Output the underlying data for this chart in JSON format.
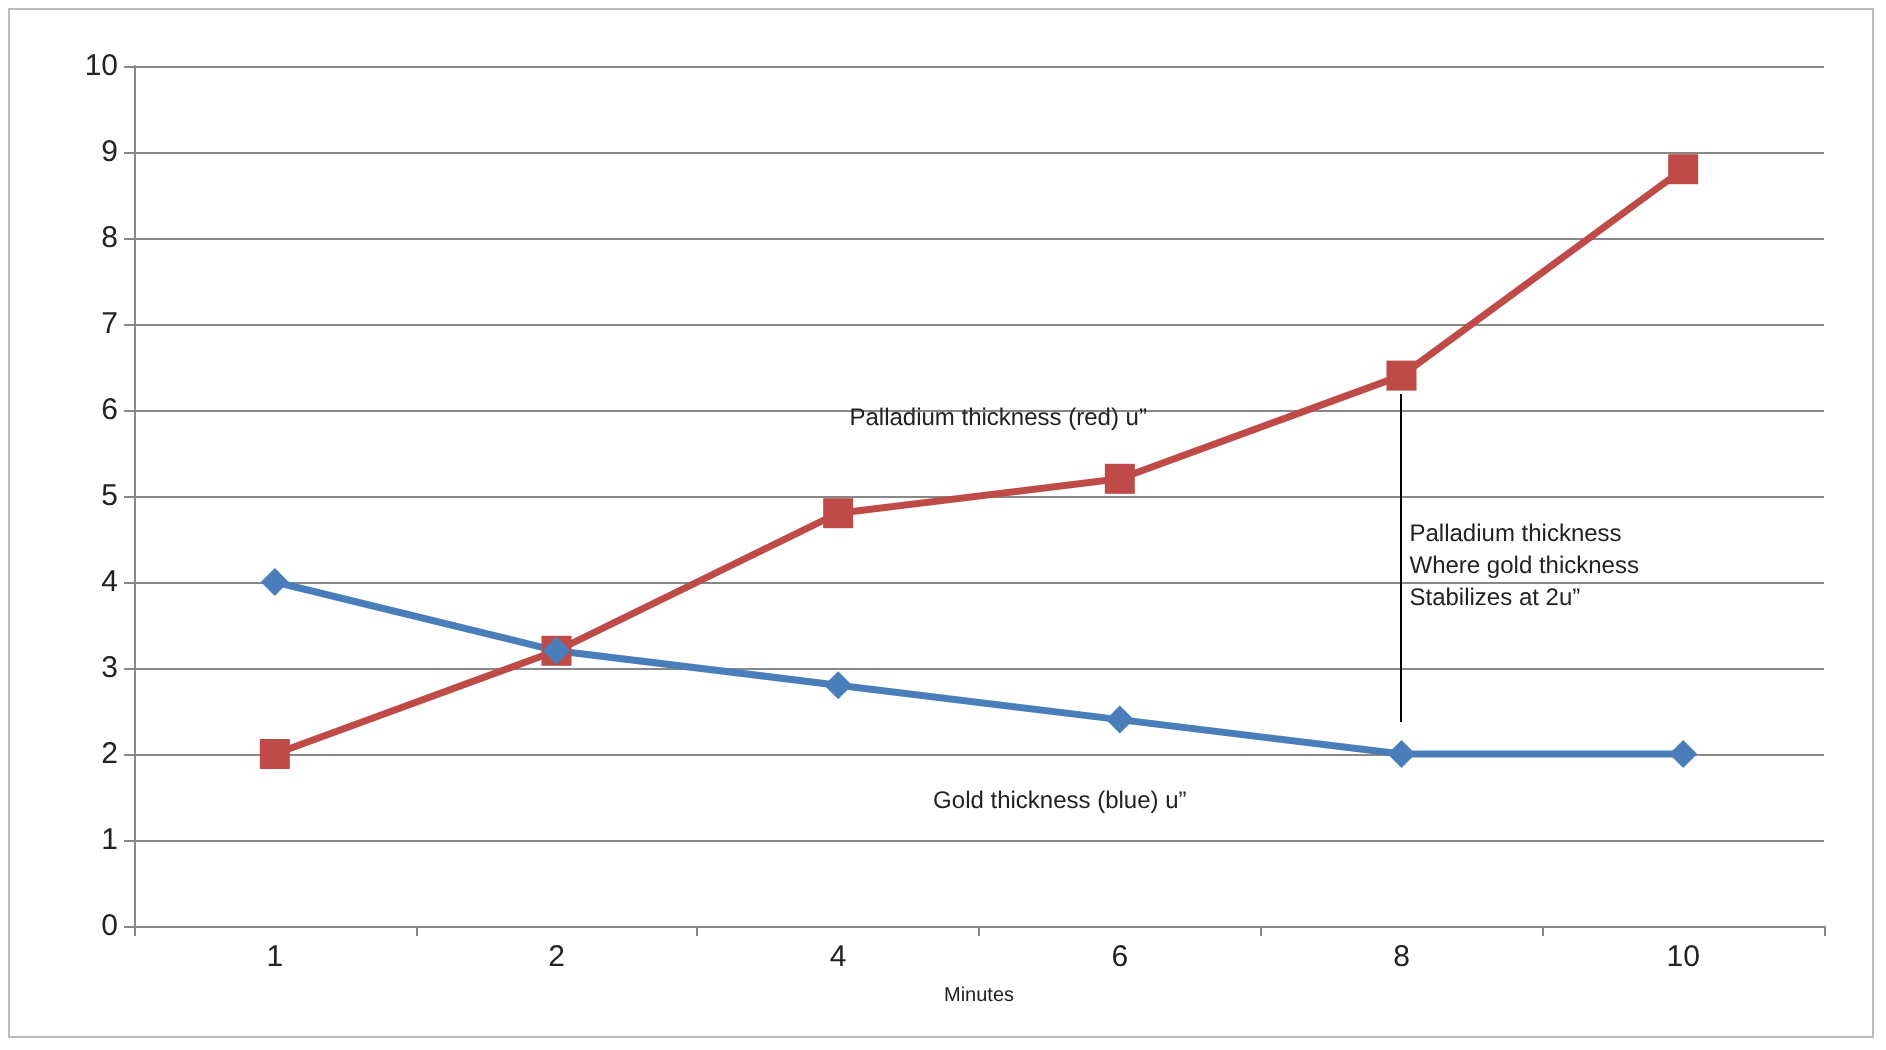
{
  "chart_data": {
    "type": "line",
    "xlabel": "Minutes",
    "categories": [
      "1",
      "2",
      "4",
      "6",
      "8",
      "10"
    ],
    "series": [
      {
        "name": "Palladium thickness (red) u”",
        "color": "#be4b48",
        "marker": "square",
        "values": [
          2,
          3.2,
          4.8,
          5.2,
          6.4,
          8.8
        ]
      },
      {
        "name": "Gold thickness (blue) u”",
        "color": "#4a7ebb",
        "marker": "diamond",
        "values": [
          4,
          3.2,
          2.8,
          2.4,
          2,
          2
        ]
      }
    ],
    "ylim": [
      0,
      10
    ],
    "yticks": [
      0,
      1,
      2,
      3,
      4,
      5,
      6,
      7,
      8,
      9,
      10
    ],
    "grid": "y",
    "legend": false,
    "annotations": [
      "Palladium thickness\nWhere gold thickness\nStabilizes at 2u”"
    ]
  }
}
